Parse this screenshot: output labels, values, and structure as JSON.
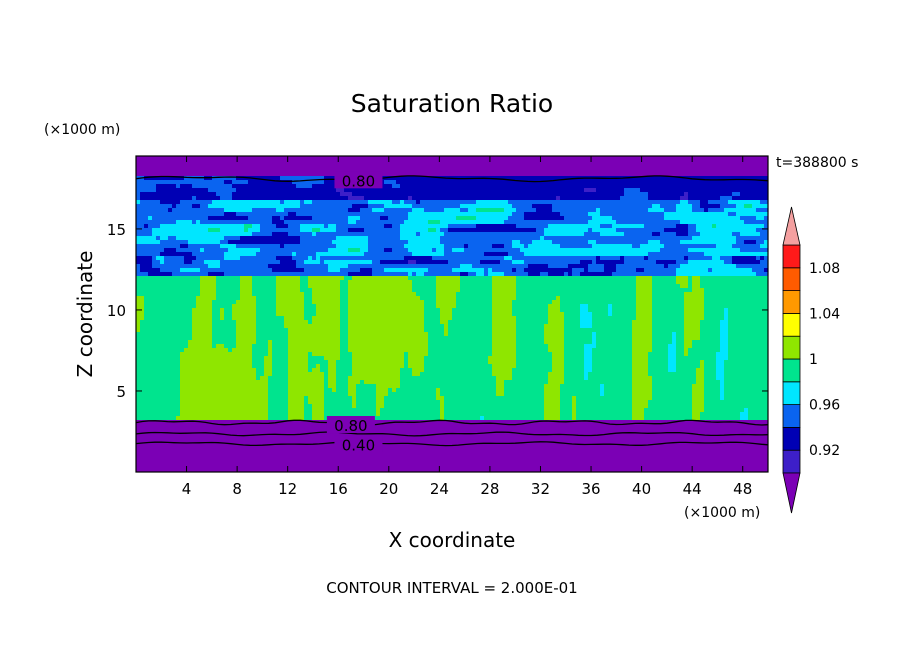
{
  "chart_data": {
    "type": "heatmap",
    "title": "Saturation Ratio",
    "xlabel": "X coordinate",
    "ylabel": "Z coordinate",
    "x_unit": "(×1000 m)",
    "y_unit": "(×1000 m)",
    "time_label": "t=388800 s",
    "footer": "CONTOUR INTERVAL = 2.000E-01",
    "xlim": [
      0,
      50
    ],
    "ylim": [
      0,
      19.5
    ],
    "x_ticks": [
      4,
      8,
      12,
      16,
      20,
      24,
      28,
      32,
      36,
      40,
      44,
      48
    ],
    "y_ticks": [
      5,
      10,
      15
    ],
    "contour_labels": [
      {
        "text": "0.80",
        "x": 17.6,
        "z": 18.0
      },
      {
        "text": "0.80",
        "x": 17.0,
        "z": 2.9
      },
      {
        "text": "0.40",
        "x": 17.6,
        "z": 1.7
      }
    ],
    "colorbar": {
      "levels": [
        0.92,
        0.94,
        0.96,
        0.98,
        1.0,
        1.02,
        1.04,
        1.06,
        1.08,
        1.1
      ],
      "tick_labels": [
        "0.92",
        "0.96",
        "1",
        "1.04",
        "1.08"
      ],
      "colors": [
        "#7b00b5",
        "#3d1fc8",
        "#0000b4",
        "#0a64f0",
        "#00e6ff",
        "#00e48e",
        "#8fe600",
        "#ffff00",
        "#ff9900",
        "#ff5b00",
        "#ff1a1a",
        "#f4a0a0"
      ]
    }
  }
}
